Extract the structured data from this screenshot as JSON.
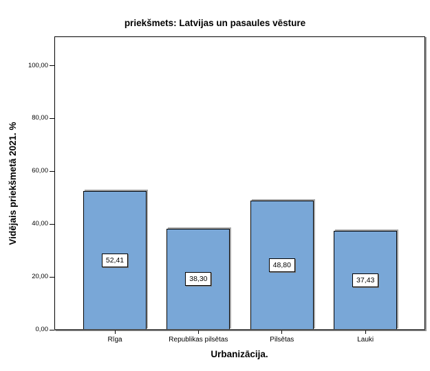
{
  "chart_data": {
    "type": "bar",
    "title": "priekšmets: Latvijas un pasaules vēsture",
    "xlabel": "Urbanizācija.",
    "ylabel": "Vidējais priekšmetā 2021. %",
    "categories": [
      "Rīga",
      "Republikas pilsētas",
      "Pilsētas",
      "Lauki"
    ],
    "values": [
      52.41,
      38.3,
      48.8,
      37.43
    ],
    "value_labels": [
      "52,41",
      "38,30",
      "48,80",
      "37,43"
    ],
    "ytick_values": [
      0,
      20,
      40,
      60,
      80,
      100
    ],
    "ytick_labels": [
      "0,00",
      "20,00",
      "40,00",
      "60,00",
      "80,00",
      "100,00"
    ],
    "ylim": [
      0,
      111
    ],
    "grid": false,
    "legend": null,
    "bar_color": "#79A7D7",
    "bar_border_color": "#000000",
    "axis_line_color": "#4d4d4d",
    "decimal_separator": ","
  }
}
